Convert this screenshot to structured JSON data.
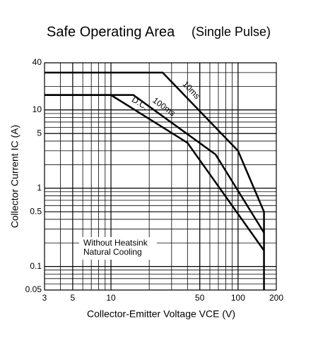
{
  "chart_data": {
    "type": "line",
    "title": "Safe Operating Area",
    "subtitle": "(Single Pulse)",
    "x_label": "Collector-Emitter Voltage  VCE (V)",
    "y_label": "Collector Current  IC (A)",
    "log_x": true,
    "log_y": true,
    "grid": true,
    "minor_grid": true,
    "xlim": [
      3,
      200
    ],
    "ylim": [
      0.05,
      40
    ],
    "xticks": [
      3,
      5,
      10,
      50,
      100,
      200
    ],
    "yticks": [
      0.05,
      0.1,
      0.5,
      1,
      5,
      10,
      40
    ],
    "series": [
      {
        "name": "10ms",
        "color": "#000000",
        "x": [
          3,
          25.5,
          100,
          160,
          160
        ],
        "values": [
          30,
          30,
          3,
          0.5,
          0.05
        ]
      },
      {
        "name": "100ms",
        "color": "#000000",
        "x": [
          3,
          15,
          66.5,
          160
        ],
        "values": [
          15.5,
          15.5,
          2.7,
          0.27
        ]
      },
      {
        "name": "D.C.",
        "color": "#000000",
        "x": [
          3,
          10,
          40,
          160
        ],
        "values": [
          15.5,
          15.5,
          3.8,
          0.16
        ]
      }
    ],
    "annotations": [
      "Without Heatsink",
      "Natural Cooling"
    ]
  }
}
